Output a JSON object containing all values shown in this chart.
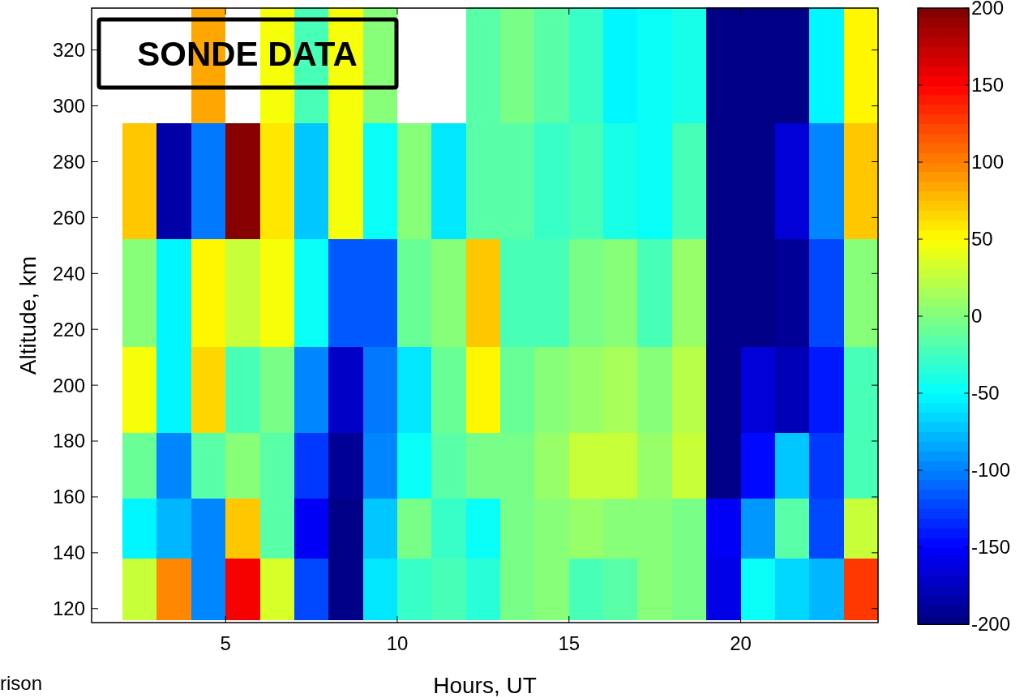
{
  "chart_data": {
    "type": "heatmap",
    "xlabel": "Hours, UT",
    "ylabel": "Altitude, km",
    "annotations": [
      "SONDE DATA",
      "rison"
    ],
    "x": [
      2.5,
      3.5,
      4.5,
      5.5,
      6.5,
      7.5,
      8.5,
      9.5,
      10.5,
      11.5,
      12.5,
      13.5,
      14.5,
      15.5,
      16.5,
      17.5,
      18.5,
      19.5,
      20.5,
      21.5,
      22.5,
      23.5
    ],
    "y": [
      314.5,
      273,
      231.5,
      196,
      170,
      149,
      127
    ],
    "xlim": [
      1.1,
      24
    ],
    "xticks": [
      5,
      10,
      15,
      20
    ],
    "ylim": [
      115,
      335
    ],
    "yticks": [
      120,
      140,
      160,
      180,
      200,
      220,
      240,
      260,
      280,
      300,
      320
    ],
    "clim": [
      -200,
      200
    ],
    "cticks": [
      -200,
      -150,
      -100,
      -50,
      0,
      50,
      100,
      150,
      200
    ],
    "cells": [
      [
        null,
        null,
        85,
        null,
        45,
        -25,
        45,
        5,
        null,
        null,
        -15,
        -5,
        -15,
        -30,
        -55,
        -45,
        -40,
        -200,
        -200,
        -200,
        -55,
        55
      ],
      [
        70,
        -185,
        -105,
        200,
        60,
        -70,
        45,
        -45,
        5,
        -60,
        -15,
        -15,
        -30,
        -25,
        -40,
        -50,
        -25,
        -200,
        -200,
        -165,
        -95,
        70
      ],
      [
        5,
        -55,
        55,
        30,
        45,
        -45,
        -115,
        -115,
        -10,
        0,
        70,
        -20,
        -20,
        -5,
        0,
        -25,
        10,
        -200,
        -195,
        -190,
        -120,
        5
      ],
      [
        45,
        -55,
        65,
        -25,
        -5,
        -95,
        -175,
        -105,
        -60,
        -10,
        50,
        -10,
        0,
        10,
        15,
        5,
        20,
        -200,
        -165,
        -180,
        -140,
        -20
      ],
      [
        -10,
        -100,
        -15,
        5,
        -15,
        -130,
        -190,
        -95,
        -45,
        -15,
        -5,
        -5,
        10,
        30,
        30,
        10,
        25,
        -200,
        -150,
        -70,
        -130,
        -20
      ],
      [
        -55,
        -80,
        -95,
        70,
        -15,
        -155,
        -195,
        -70,
        -5,
        -30,
        -45,
        -5,
        5,
        10,
        5,
        5,
        -5,
        -155,
        -90,
        -15,
        -125,
        30
      ],
      [
        25,
        95,
        -95,
        155,
        35,
        -120,
        -195,
        -60,
        -30,
        -20,
        -35,
        -5,
        0,
        -20,
        -15,
        0,
        -5,
        -160,
        -50,
        -65,
        -80,
        130
      ]
    ]
  }
}
